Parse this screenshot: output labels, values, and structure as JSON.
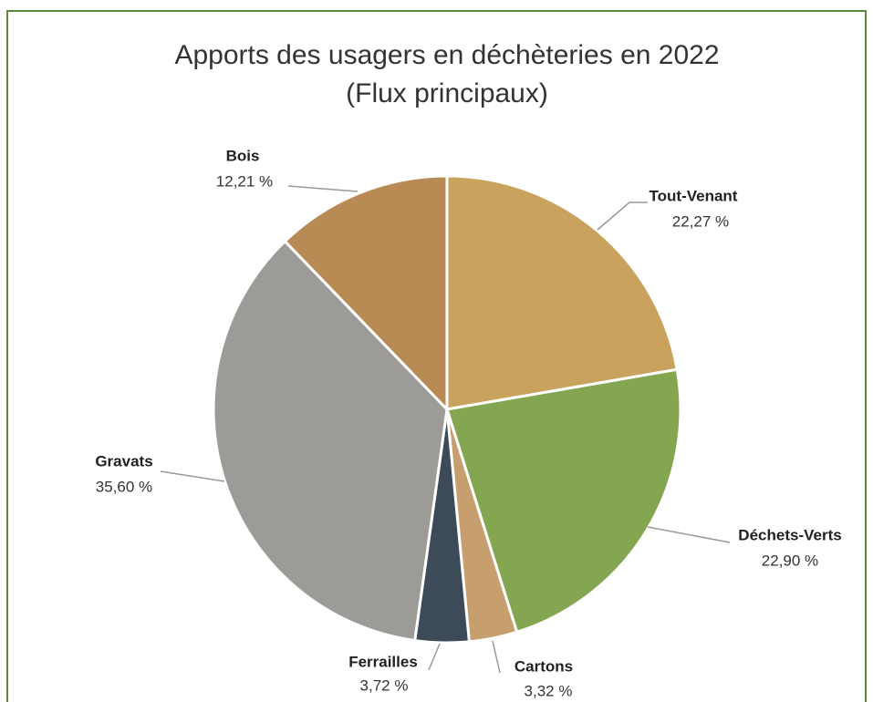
{
  "chart_data": {
    "type": "pie",
    "title": "Apports des usagers en déchèteries en 2022",
    "subtitle": "(Flux principaux)",
    "categories": [
      "Tout-Venant",
      "Déchets-Verts",
      "Cartons",
      "Ferrailles",
      "Gravats",
      "Bois"
    ],
    "values": [
      22.27,
      22.9,
      3.32,
      3.72,
      35.6,
      12.21
    ],
    "value_labels": [
      "22,27 %",
      "22,90 %",
      "3,32 %",
      "3,72 %",
      "35,60 %",
      "12,21 %"
    ],
    "colors": [
      "#c9a35e",
      "#84a650",
      "#c79f6e",
      "#3d4a58",
      "#9c9b97",
      "#b88b55"
    ]
  }
}
